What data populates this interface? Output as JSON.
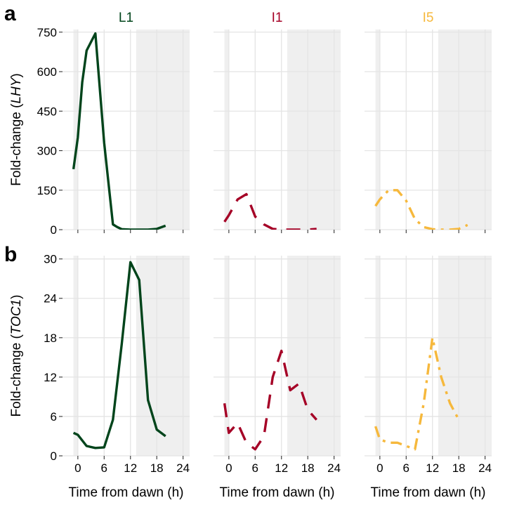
{
  "panel_tags": [
    "a",
    "b"
  ],
  "conditions": [
    "L1",
    "I1",
    "I5"
  ],
  "condition_colors": [
    "#00441b",
    "#a50026",
    "#f6b83c"
  ],
  "condition_dash": [
    "solid",
    "long-dash",
    "dash-dot"
  ],
  "x_axis_title": "Time from dawn (h)",
  "chart_data": [
    {
      "type": "line",
      "panel": "a",
      "ylabel_prefix": "Fold-change (",
      "ylabel_gene": "LHY",
      "ylabel_suffix": ")",
      "ylim": [
        0,
        760
      ],
      "yticks": [
        0,
        150,
        300,
        450,
        600,
        750
      ],
      "xlim": [
        -3.5,
        25.5
      ],
      "xticks": [
        0,
        6,
        12,
        18,
        24
      ],
      "grid": true,
      "shaded_dark_periods": [
        [
          -1,
          2,
          13,
          26
        ]
      ],
      "facets": [
        {
          "title": "L1",
          "shade": [
            [
              -1,
              0
            ],
            [
              13.3,
              26
            ]
          ],
          "series": [
            {
              "name": "L1",
              "x": [
                -1,
                0,
                1,
                2,
                4,
                6,
                8,
                9,
                10,
                12,
                14,
                16,
                18,
                20
              ],
              "y": [
                230,
                350,
                560,
                680,
                745,
                330,
                20,
                10,
                2,
                0,
                0,
                0,
                3,
                15
              ]
            }
          ]
        },
        {
          "title": "I1",
          "shade": [
            [
              -1,
              0
            ],
            [
              13.3,
              26
            ]
          ],
          "series": [
            {
              "name": "I1",
              "x": [
                -1,
                0,
                1,
                2,
                4,
                6,
                8,
                10,
                12,
                14,
                16,
                18,
                20
              ],
              "y": [
                30,
                55,
                85,
                115,
                135,
                50,
                20,
                3,
                0,
                0,
                0,
                0,
                3
              ]
            }
          ]
        },
        {
          "title": "I5",
          "shade": [
            [
              -1,
              0
            ],
            [
              13.3,
              26
            ]
          ],
          "series": [
            {
              "name": "I5",
              "x": [
                -1,
                0,
                2,
                4,
                6,
                8,
                10,
                12,
                14,
                16,
                18,
                20
              ],
              "y": [
                90,
                115,
                150,
                150,
                110,
                40,
                10,
                2,
                0,
                0,
                3,
                18
              ]
            }
          ]
        }
      ]
    },
    {
      "type": "line",
      "panel": "b",
      "ylabel_prefix": "Fold-change (",
      "ylabel_gene": "TOC1",
      "ylabel_suffix": ")",
      "ylim": [
        0,
        30.5
      ],
      "yticks": [
        0,
        6,
        12,
        18,
        24,
        30
      ],
      "xlim": [
        -3.5,
        25.5
      ],
      "xticks": [
        0,
        6,
        12,
        18,
        24
      ],
      "grid": true,
      "facets": [
        {
          "title": "L1",
          "shade": [
            [
              -1,
              0
            ],
            [
              13.3,
              26
            ]
          ],
          "series": [
            {
              "name": "L1",
              "x": [
                -1,
                0,
                2,
                4,
                6,
                8,
                10,
                12,
                14,
                16,
                18,
                20
              ],
              "y": [
                3.5,
                3.2,
                1.5,
                1.2,
                1.3,
                5.5,
                17,
                29.5,
                26.8,
                8.5,
                4,
                3
              ]
            }
          ]
        },
        {
          "title": "I1",
          "shade": [
            [
              -1,
              0
            ],
            [
              13.3,
              26
            ]
          ],
          "series": [
            {
              "name": "I1",
              "x": [
                -1,
                0,
                2,
                4,
                6,
                8,
                10,
                12,
                14,
                16,
                18,
                20
              ],
              "y": [
                8,
                3.5,
                5,
                2,
                1,
                3,
                12,
                16,
                10,
                11,
                7,
                5.5
              ]
            }
          ]
        },
        {
          "title": "I5",
          "shade": [
            [
              -1,
              0
            ],
            [
              13.3,
              26
            ]
          ],
          "series": [
            {
              "name": "I5",
              "x": [
                -1,
                0,
                2,
                4,
                6,
                8,
                10,
                12,
                14,
                16,
                18
              ],
              "y": [
                4.5,
                2.5,
                2,
                2,
                1.5,
                1,
                8,
                18,
                12,
                8,
                5.5
              ]
            }
          ]
        }
      ]
    }
  ]
}
